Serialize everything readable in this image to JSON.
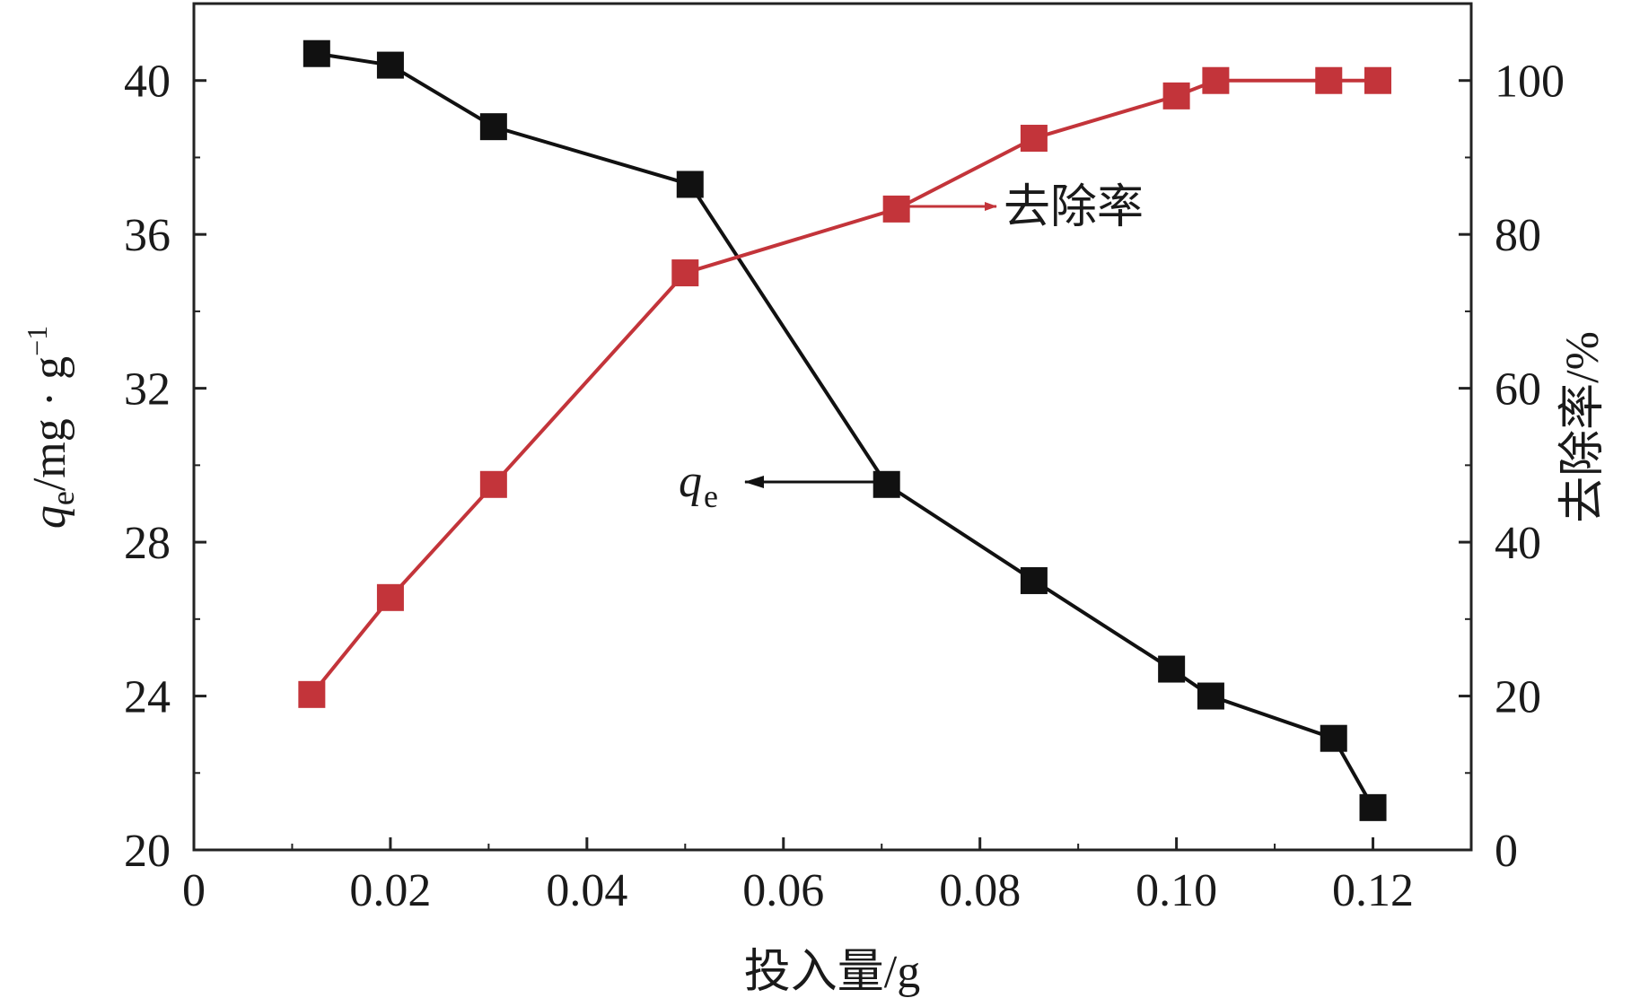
{
  "chart_data": {
    "type": "line",
    "xlabel": "投入量/g",
    "ylabel_main": "q",
    "ylabel_sub": "e",
    "ylabel_rest": "/mg · g",
    "ylabel_sup": "−1",
    "y2label": "去除率/%",
    "xlim": [
      0,
      0.13
    ],
    "ylim": [
      20,
      42
    ],
    "y2lim": [
      0,
      110
    ],
    "xticks": [
      "0",
      "0.02",
      "0.04",
      "0.06",
      "0.08",
      "0.10",
      "0.12"
    ],
    "xtick_values": [
      0,
      0.02,
      0.04,
      0.06,
      0.08,
      0.1,
      0.12
    ],
    "yticks": [
      "20",
      "24",
      "28",
      "32",
      "36",
      "40"
    ],
    "ytick_values": [
      20,
      24,
      28,
      32,
      36,
      40
    ],
    "y2ticks": [
      "0",
      "20",
      "40",
      "60",
      "80",
      "100"
    ],
    "y2tick_values": [
      0,
      20,
      40,
      60,
      80,
      100
    ],
    "series": [
      {
        "name": "q",
        "name_sub": "e",
        "axis": "left",
        "color": "#111111",
        "x": [
          0.0125,
          0.02,
          0.0305,
          0.0505,
          0.0705,
          0.0855,
          0.0995,
          0.1035,
          0.116,
          0.12
        ],
        "y": [
          40.7,
          40.4,
          38.8,
          37.3,
          29.5,
          27.0,
          24.7,
          24.0,
          22.9,
          21.1
        ]
      },
      {
        "name": "去除率",
        "axis": "right",
        "color": "#c3343a",
        "x": [
          0.012,
          0.02,
          0.0305,
          0.05,
          0.0715,
          0.0855,
          0.1,
          0.104,
          0.1155,
          0.1205
        ],
        "y": [
          20.2,
          32.8,
          47.5,
          75.0,
          83.3,
          92.5,
          98.0,
          100.0,
          100.0,
          100.0
        ]
      }
    ],
    "annotations": [
      {
        "text": "去除率",
        "arrow_direction": "right"
      },
      {
        "text_main": "q",
        "text_sub": "e",
        "arrow_direction": "left"
      }
    ]
  }
}
